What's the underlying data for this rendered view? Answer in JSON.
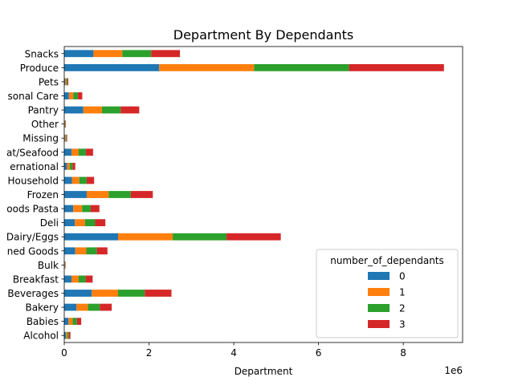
{
  "chart_data": {
    "type": "bar",
    "orientation": "horizontal",
    "stacked": true,
    "title": "Department By Dependants",
    "xlabel": "Department",
    "ylabel": "",
    "x_offset_label": "1e6",
    "xlim": [
      0,
      9400000
    ],
    "xticks": [
      0,
      2000000,
      4000000,
      6000000,
      8000000
    ],
    "xtick_labels": [
      "0",
      "2",
      "4",
      "6",
      "8"
    ],
    "categories": [
      "Snacks",
      "Produce",
      "Pets",
      "Personal Care",
      "Pantry",
      "Other",
      "Missing",
      "Meat/Seafood",
      "International",
      "Household",
      "Frozen",
      "Dry Goods Pasta",
      "Deli",
      "Dairy/Eggs",
      "Canned Goods",
      "Bulk",
      "Breakfast",
      "Beverages",
      "Bakery",
      "Babies",
      "Alcohol"
    ],
    "ytick_labels": [
      "Snacks",
      "Produce",
      "Pets",
      "sonal Care",
      "Pantry",
      "Other",
      "Missing",
      "at/Seafood",
      "ernational",
      "Household",
      "Frozen",
      "oods Pasta",
      "Deli",
      "Dairy/Eggs",
      "ned Goods",
      "Bulk",
      "Breakfast",
      "Beverages",
      "Bakery",
      "Babies",
      "Alcohol"
    ],
    "legend": {
      "title": "number_of_dependants",
      "position": "lower right"
    },
    "series": [
      {
        "name": "0",
        "color": "#1f77b4",
        "values": [
          690000,
          2240000,
          24000,
          110000,
          450000,
          9000,
          17000,
          170000,
          65000,
          180000,
          530000,
          210000,
          250000,
          1270000,
          260000,
          8000,
          170000,
          650000,
          290000,
          100000,
          37000
        ]
      },
      {
        "name": "1",
        "color": "#ff7f0e",
        "values": [
          680000,
          2240000,
          24000,
          105000,
          440000,
          9000,
          17000,
          170000,
          65000,
          175000,
          520000,
          210000,
          240000,
          1290000,
          260000,
          8000,
          170000,
          620000,
          270000,
          100000,
          36000
        ]
      },
      {
        "name": "2",
        "color": "#2ca02c",
        "values": [
          680000,
          2240000,
          24000,
          105000,
          440000,
          9000,
          17000,
          170000,
          65000,
          175000,
          520000,
          205000,
          240000,
          1270000,
          250000,
          8000,
          165000,
          630000,
          280000,
          100000,
          37000
        ]
      },
      {
        "name": "3",
        "color": "#d62728",
        "values": [
          680000,
          2240000,
          24000,
          105000,
          440000,
          9000,
          17000,
          170000,
          65000,
          175000,
          520000,
          205000,
          240000,
          1280000,
          250000,
          8000,
          165000,
          630000,
          280000,
          100000,
          36000
        ]
      }
    ]
  }
}
